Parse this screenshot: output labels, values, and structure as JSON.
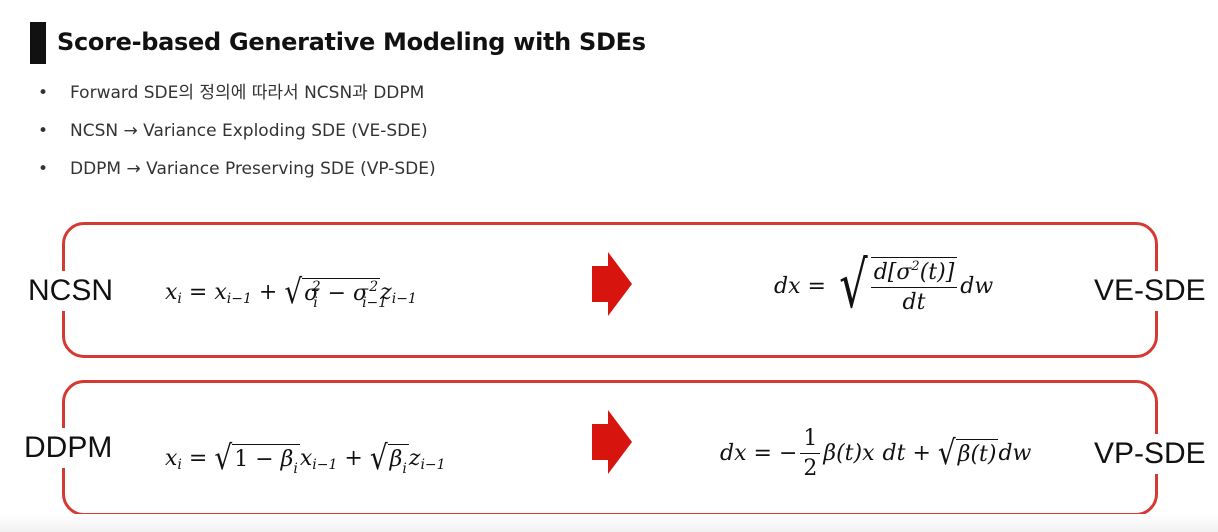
{
  "slide": {
    "title": "Score-based Generative Modeling with SDEs",
    "bullets": [
      "Forward SDE의 정의에 따라서 NCSN과 DDPM",
      "NCSN → Variance Exploding SDE (VE-SDE)",
      "DDPM → Variance Preserving SDE (VP-SDE)"
    ],
    "bullet_symbol": "•"
  },
  "rows": [
    {
      "left_label": "NCSN",
      "right_label": "VE-SDE"
    },
    {
      "left_label": "DDPM",
      "right_label": "VP-SDE"
    }
  ],
  "colors": {
    "frame": "#d23a32",
    "arrow": "#d8140e",
    "title_bar": "#111111"
  }
}
